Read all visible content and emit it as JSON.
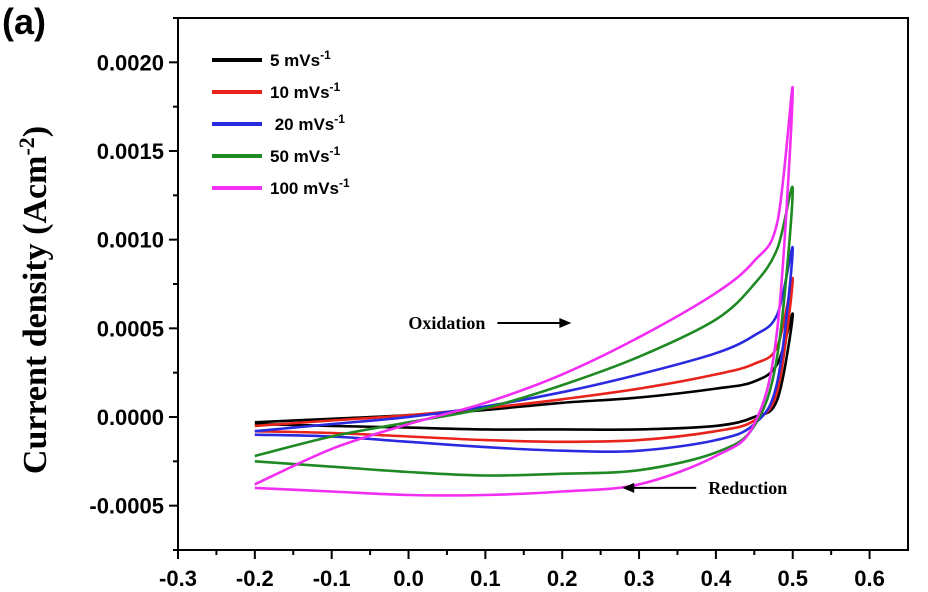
{
  "chart_data": {
    "type": "line",
    "panel_label": "(a)",
    "title": "",
    "xlabel": "",
    "ylabel": "Current density (Acm",
    "ylabel_superscript": "-2",
    "ylabel_close": ")",
    "xlim": [
      -0.3,
      0.65
    ],
    "ylim": [
      -0.00075,
      0.00225
    ],
    "x_ticks": [
      "-0.3",
      "-0.2",
      "-0.1",
      "0.0",
      "0.1",
      "0.2",
      "0.3",
      "0.4",
      "0.5",
      "0.6"
    ],
    "x_tick_values": [
      -0.3,
      -0.2,
      -0.1,
      0.0,
      0.1,
      0.2,
      0.3,
      0.4,
      0.5,
      0.6
    ],
    "y_ticks": [
      "-0.0005",
      "0.0000",
      "0.0005",
      "0.0010",
      "0.0015",
      "0.0020"
    ],
    "y_tick_values": [
      -0.0005,
      0.0,
      0.0005,
      0.001,
      0.0015,
      0.002
    ],
    "grid": false,
    "legend_position": "top-left",
    "annotations": [
      {
        "text": "Oxidation",
        "x": 0.1,
        "y": 0.00053,
        "arrow": "right"
      },
      {
        "text": "Reduction",
        "x": 0.39,
        "y": -0.0004,
        "arrow": "left"
      }
    ],
    "series": [
      {
        "name": "5 mVs",
        "unit_sup": "-1",
        "color": "#000000",
        "x": [
          -0.2,
          -0.1,
          0.0,
          0.1,
          0.2,
          0.3,
          0.4,
          0.45,
          0.48,
          0.5,
          0.48,
          0.45,
          0.4,
          0.3,
          0.2,
          0.1,
          0.0,
          -0.1,
          -0.2
        ],
        "y": [
          -3e-05,
          -1e-05,
          1e-05,
          4e-05,
          8e-05,
          0.00011,
          0.00016,
          0.0002,
          0.0003,
          0.00058,
          0.0001,
          0.0,
          -5e-05,
          -7e-05,
          -7e-05,
          -7e-05,
          -6e-05,
          -5e-05,
          -4e-05
        ]
      },
      {
        "name": "10 mVs",
        "unit_sup": "-1",
        "color": "#e8231c",
        "x": [
          -0.2,
          -0.1,
          0.0,
          0.1,
          0.2,
          0.3,
          0.4,
          0.45,
          0.48,
          0.5,
          0.48,
          0.45,
          0.4,
          0.3,
          0.2,
          0.1,
          0.0,
          -0.1,
          -0.2
        ],
        "y": [
          -5e-05,
          -2e-05,
          1e-05,
          5e-05,
          0.0001,
          0.00016,
          0.00024,
          0.0003,
          0.0004,
          0.00078,
          0.00015,
          -2e-05,
          -8e-05,
          -0.00013,
          -0.00014,
          -0.00013,
          -0.00011,
          -9e-05,
          -8e-05
        ]
      },
      {
        "name": " 20 mVs",
        "unit_sup": "-1",
        "color": "#2a2ae0",
        "x": [
          -0.2,
          -0.1,
          0.0,
          0.1,
          0.2,
          0.3,
          0.4,
          0.45,
          0.48,
          0.5,
          0.48,
          0.45,
          0.4,
          0.3,
          0.2,
          0.1,
          0.0,
          -0.1,
          -0.2
        ],
        "y": [
          -8e-05,
          -4e-05,
          0.0,
          6e-05,
          0.00014,
          0.00024,
          0.00036,
          0.00046,
          0.00058,
          0.00095,
          0.0002,
          -4e-05,
          -0.00013,
          -0.00019,
          -0.00019,
          -0.00017,
          -0.00014,
          -0.00011,
          -0.0001
        ]
      },
      {
        "name": "50 mVs",
        "unit_sup": "-1",
        "color": "#1f8a24",
        "x": [
          -0.2,
          -0.1,
          0.0,
          0.1,
          0.2,
          0.3,
          0.4,
          0.45,
          0.48,
          0.5,
          0.48,
          0.45,
          0.4,
          0.3,
          0.2,
          0.1,
          0.0,
          -0.1,
          -0.2
        ],
        "y": [
          -0.00022,
          -0.00011,
          -3e-05,
          5e-05,
          0.00018,
          0.00034,
          0.00055,
          0.00075,
          0.00095,
          0.00128,
          0.00035,
          -5e-05,
          -0.0002,
          -0.0003,
          -0.00032,
          -0.00033,
          -0.00031,
          -0.00028,
          -0.00025
        ]
      },
      {
        "name": "100 mVs",
        "unit_sup": "-1",
        "color": "#f22ef2",
        "x": [
          -0.2,
          -0.1,
          0.0,
          0.1,
          0.2,
          0.3,
          0.4,
          0.45,
          0.48,
          0.5,
          0.48,
          0.45,
          0.4,
          0.3,
          0.2,
          0.1,
          0.0,
          -0.1,
          -0.2
        ],
        "y": [
          -0.00038,
          -0.00018,
          -4e-05,
          8e-05,
          0.00024,
          0.00045,
          0.0007,
          0.00088,
          0.0011,
          0.00185,
          0.0005,
          -4e-05,
          -0.00022,
          -0.00038,
          -0.00042,
          -0.00044,
          -0.00044,
          -0.00042,
          -0.0004
        ]
      }
    ]
  }
}
